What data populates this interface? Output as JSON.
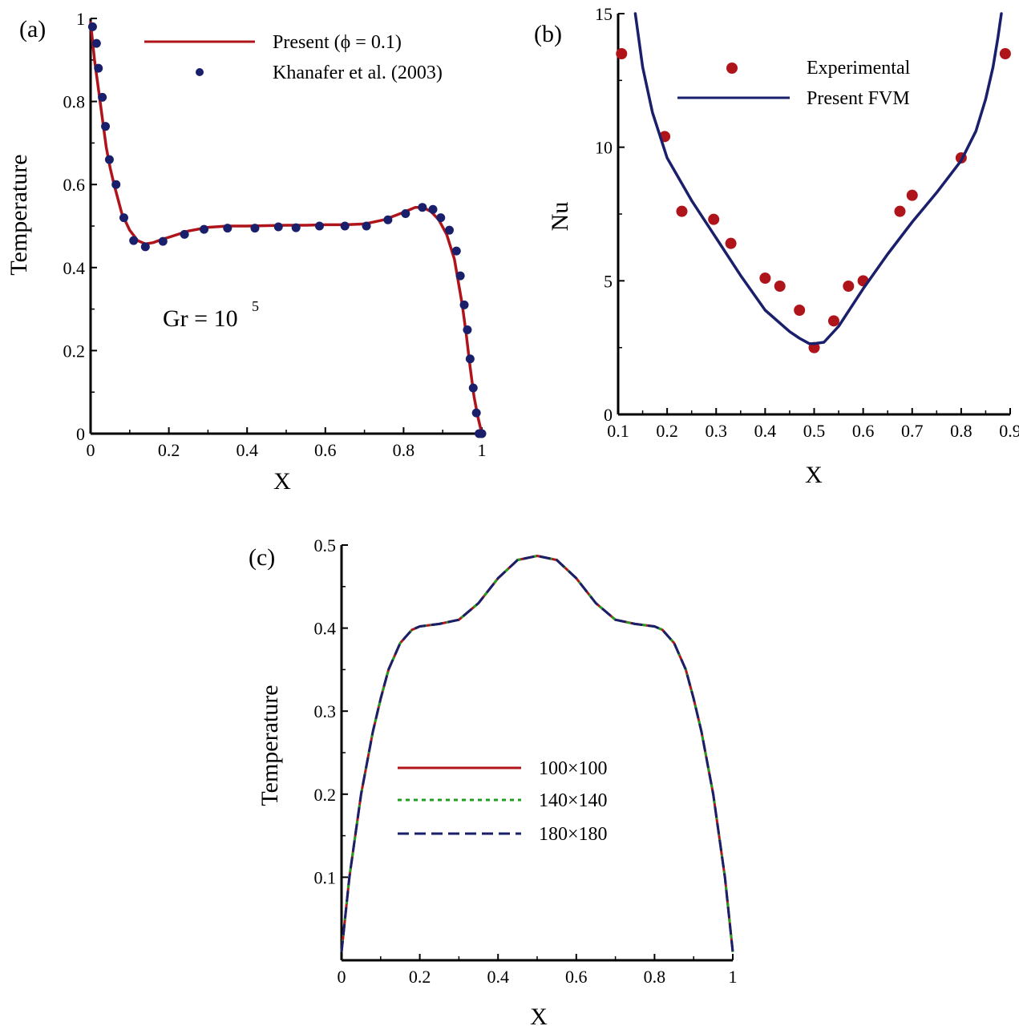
{
  "colors": {
    "red": "#b0141b",
    "navy": "#1a1f6b",
    "green": "#1f9e1f",
    "axis": "#000000"
  },
  "chart_data": [
    {
      "type": "line+scatter",
      "panel_label": "(a)",
      "xlabel": "X",
      "ylabel": "Temperature",
      "xlim": [
        0,
        1
      ],
      "ylim": [
        0,
        1
      ],
      "xticks": [
        0,
        0.2,
        0.4,
        0.6,
        0.8,
        1
      ],
      "xtick_labels": [
        "0",
        "0.2",
        "0.4",
        "0.6",
        "0.8",
        "1"
      ],
      "yticks": [
        0,
        0.2,
        0.4,
        0.6,
        0.8,
        1
      ],
      "ytick_labels": [
        "0",
        "0.2",
        "0.4",
        "0.6",
        "0.8",
        "1"
      ],
      "annotation": {
        "text": "Gr = 10",
        "sup": "5",
        "x": 0.24,
        "y": 0.265
      },
      "series": [
        {
          "name": "Present (ϕ = 0.1)",
          "kind": "line",
          "color": "#b0141b",
          "x": [
            0,
            0.01,
            0.02,
            0.03,
            0.04,
            0.05,
            0.06,
            0.08,
            0.1,
            0.12,
            0.14,
            0.16,
            0.18,
            0.2,
            0.25,
            0.3,
            0.35,
            0.4,
            0.45,
            0.5,
            0.55,
            0.6,
            0.65,
            0.7,
            0.75,
            0.8,
            0.83,
            0.85,
            0.87,
            0.89,
            0.91,
            0.93,
            0.95,
            0.96,
            0.97,
            0.98,
            0.99,
            1.0
          ],
          "y": [
            0.99,
            0.9,
            0.83,
            0.76,
            0.69,
            0.64,
            0.6,
            0.53,
            0.49,
            0.465,
            0.457,
            0.46,
            0.467,
            0.473,
            0.488,
            0.497,
            0.5,
            0.5,
            0.501,
            0.502,
            0.502,
            0.503,
            0.503,
            0.505,
            0.515,
            0.533,
            0.545,
            0.545,
            0.535,
            0.515,
            0.48,
            0.42,
            0.31,
            0.24,
            0.16,
            0.09,
            0.04,
            0.0
          ]
        },
        {
          "name": "Khanafer et al. (2003)",
          "kind": "scatter",
          "color": "#1a1f6b",
          "x": [
            0.005,
            0.015,
            0.02,
            0.03,
            0.038,
            0.048,
            0.065,
            0.085,
            0.11,
            0.14,
            0.185,
            0.24,
            0.29,
            0.35,
            0.42,
            0.48,
            0.525,
            0.585,
            0.65,
            0.705,
            0.76,
            0.805,
            0.848,
            0.875,
            0.895,
            0.917,
            0.935,
            0.945,
            0.955,
            0.963,
            0.97,
            0.978,
            0.986,
            0.993,
            1.0
          ],
          "y": [
            0.98,
            0.94,
            0.88,
            0.81,
            0.74,
            0.66,
            0.6,
            0.52,
            0.465,
            0.45,
            0.463,
            0.48,
            0.492,
            0.495,
            0.495,
            0.498,
            0.496,
            0.5,
            0.5,
            0.5,
            0.515,
            0.53,
            0.545,
            0.54,
            0.52,
            0.49,
            0.44,
            0.38,
            0.31,
            0.25,
            0.18,
            0.11,
            0.05,
            0.0,
            0.0
          ]
        }
      ],
      "legend_labels": [
        "Present (ϕ = 0.1)",
        "Khanafer et al. (2003)"
      ]
    },
    {
      "type": "line+scatter",
      "panel_label": "(b)",
      "xlabel": "X",
      "ylabel": "Nu",
      "xlim": [
        0.1,
        0.9
      ],
      "ylim": [
        0,
        15
      ],
      "xticks": [
        0.1,
        0.2,
        0.3,
        0.4,
        0.5,
        0.6,
        0.7,
        0.8,
        0.9
      ],
      "xtick_labels": [
        "0.1",
        "0.2",
        "0.3",
        "0.4",
        "0.5",
        "0.6",
        "0.7",
        "0.8",
        "0.9"
      ],
      "yticks": [
        0,
        5,
        10,
        15
      ],
      "ytick_labels": [
        "0",
        "5",
        "10",
        "15"
      ],
      "series": [
        {
          "name": "Experimental",
          "kind": "scatter",
          "color": "#b0141b",
          "x": [
            0.107,
            0.195,
            0.23,
            0.295,
            0.33,
            0.4,
            0.43,
            0.47,
            0.5,
            0.54,
            0.57,
            0.6,
            0.675,
            0.7,
            0.8,
            0.89
          ],
          "y": [
            13.5,
            10.4,
            7.6,
            7.3,
            6.4,
            5.1,
            4.8,
            3.9,
            2.5,
            3.5,
            4.8,
            5.0,
            7.6,
            8.2,
            9.6,
            13.5
          ]
        },
        {
          "name": "Present FVM",
          "kind": "line",
          "color": "#1a1f6b",
          "x": [
            0.135,
            0.15,
            0.17,
            0.2,
            0.25,
            0.3,
            0.35,
            0.4,
            0.45,
            0.47,
            0.49,
            0.5,
            0.52,
            0.55,
            0.6,
            0.65,
            0.7,
            0.75,
            0.8,
            0.83,
            0.85,
            0.865,
            0.875,
            0.882
          ],
          "y": [
            15.0,
            13.0,
            11.3,
            9.6,
            8.0,
            6.6,
            5.2,
            3.9,
            3.1,
            2.85,
            2.65,
            2.65,
            2.7,
            3.3,
            4.7,
            6.0,
            7.2,
            8.3,
            9.5,
            10.6,
            11.8,
            13.0,
            14.1,
            15.0
          ]
        }
      ],
      "legend_labels": [
        "Experimental",
        "Present FVM"
      ]
    },
    {
      "type": "line",
      "panel_label": "(c)",
      "xlabel": "X",
      "ylabel": "Temperature",
      "xlim": [
        0,
        1
      ],
      "ylim": [
        0,
        0.5
      ],
      "xticks": [
        0,
        0.2,
        0.4,
        0.6,
        0.8,
        1
      ],
      "xtick_labels": [
        "0",
        "0.2",
        "0.4",
        "0.6",
        "0.8",
        "1"
      ],
      "yticks": [
        0.1,
        0.2,
        0.3,
        0.4,
        0.5
      ],
      "ytick_labels": [
        "0.1",
        "0.2",
        "0.3",
        "0.4",
        "0.5"
      ],
      "x": [
        0,
        0.02,
        0.05,
        0.08,
        0.1,
        0.12,
        0.15,
        0.18,
        0.2,
        0.25,
        0.3,
        0.35,
        0.4,
        0.45,
        0.5,
        0.55,
        0.6,
        0.65,
        0.7,
        0.75,
        0.8,
        0.82,
        0.85,
        0.88,
        0.9,
        0.92,
        0.95,
        0.98,
        1.0
      ],
      "series": [
        {
          "name": "100×100",
          "dash": "solid",
          "color": "#b0141b",
          "values": [
            0.01,
            0.1,
            0.2,
            0.275,
            0.315,
            0.35,
            0.382,
            0.398,
            0.402,
            0.405,
            0.41,
            0.43,
            0.46,
            0.482,
            0.487,
            0.482,
            0.46,
            0.43,
            0.41,
            0.405,
            0.402,
            0.398,
            0.382,
            0.35,
            0.315,
            0.275,
            0.2,
            0.1,
            0.01
          ]
        },
        {
          "name": "140×140",
          "dash": "dotted",
          "color": "#1f9e1f",
          "values": [
            0.01,
            0.1,
            0.2,
            0.275,
            0.315,
            0.35,
            0.382,
            0.398,
            0.402,
            0.405,
            0.41,
            0.43,
            0.46,
            0.482,
            0.487,
            0.482,
            0.46,
            0.43,
            0.41,
            0.405,
            0.402,
            0.398,
            0.382,
            0.35,
            0.315,
            0.275,
            0.2,
            0.1,
            0.01
          ]
        },
        {
          "name": "180×180",
          "dash": "dashed",
          "color": "#1a1f6b",
          "values": [
            0.01,
            0.1,
            0.2,
            0.275,
            0.315,
            0.35,
            0.382,
            0.398,
            0.402,
            0.405,
            0.41,
            0.43,
            0.46,
            0.482,
            0.487,
            0.482,
            0.46,
            0.43,
            0.41,
            0.405,
            0.402,
            0.398,
            0.382,
            0.35,
            0.315,
            0.275,
            0.2,
            0.1,
            0.01
          ]
        }
      ],
      "legend_labels": [
        "100×100",
        "140×140",
        "180×180"
      ]
    }
  ]
}
